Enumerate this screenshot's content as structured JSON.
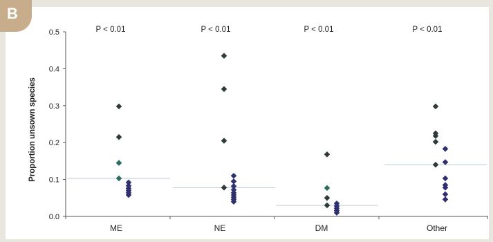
{
  "panel_label": "B",
  "chart_data": {
    "type": "scatter",
    "ylabel": "Proportion unsown species",
    "ylim": [
      0,
      0.5
    ],
    "yticks": [
      "0.0",
      "0.1",
      "0.2",
      "0.3",
      "0.4",
      "0.5"
    ],
    "categories": [
      "ME",
      "NE",
      "DM",
      "Other"
    ],
    "pvalues": [
      "P < 0.01",
      "P < 0.01",
      "P < 0.01",
      "P < 0.01"
    ],
    "colors": {
      "dark": "#2f3b3b",
      "green": "#2e6b5e",
      "navy": "#30306e",
      "mean_line": "#c9d4dc",
      "badge": "#c7ad8b"
    },
    "groups": [
      {
        "category": "ME",
        "mean": 0.103,
        "points": [
          {
            "y": 0.298,
            "c": "dark",
            "o": 0
          },
          {
            "y": 0.215,
            "c": "dark",
            "o": 0
          },
          {
            "y": 0.145,
            "c": "green",
            "o": 0
          },
          {
            "y": 0.103,
            "c": "green",
            "o": 0
          },
          {
            "y": 0.092,
            "c": "navy",
            "o": 1
          },
          {
            "y": 0.083,
            "c": "navy",
            "o": 1
          },
          {
            "y": 0.076,
            "c": "navy",
            "o": 1
          },
          {
            "y": 0.07,
            "c": "navy",
            "o": 1
          },
          {
            "y": 0.064,
            "c": "navy",
            "o": 1
          },
          {
            "y": 0.058,
            "c": "navy",
            "o": 1
          }
        ]
      },
      {
        "category": "NE",
        "mean": 0.078,
        "points": [
          {
            "y": 0.435,
            "c": "dark",
            "o": 0
          },
          {
            "y": 0.345,
            "c": "dark",
            "o": 0
          },
          {
            "y": 0.205,
            "c": "dark",
            "o": 0
          },
          {
            "y": 0.078,
            "c": "dark",
            "o": 0
          },
          {
            "y": 0.11,
            "c": "navy",
            "o": 1
          },
          {
            "y": 0.095,
            "c": "navy",
            "o": 1
          },
          {
            "y": 0.082,
            "c": "navy",
            "o": 1
          },
          {
            "y": 0.072,
            "c": "navy",
            "o": 1
          },
          {
            "y": 0.064,
            "c": "navy",
            "o": 1
          },
          {
            "y": 0.058,
            "c": "navy",
            "o": 1
          },
          {
            "y": 0.052,
            "c": "navy",
            "o": 1
          },
          {
            "y": 0.046,
            "c": "navy",
            "o": 1
          },
          {
            "y": 0.04,
            "c": "navy",
            "o": 1
          }
        ]
      },
      {
        "category": "DM",
        "mean": 0.03,
        "points": [
          {
            "y": 0.168,
            "c": "dark",
            "o": 0
          },
          {
            "y": 0.077,
            "c": "green",
            "o": 0
          },
          {
            "y": 0.05,
            "c": "dark",
            "o": 0
          },
          {
            "y": 0.03,
            "c": "dark",
            "o": 0
          },
          {
            "y": 0.035,
            "c": "navy",
            "o": 1
          },
          {
            "y": 0.028,
            "c": "navy",
            "o": 1
          },
          {
            "y": 0.022,
            "c": "navy",
            "o": 1
          },
          {
            "y": 0.016,
            "c": "navy",
            "o": 1
          },
          {
            "y": 0.01,
            "c": "navy",
            "o": 1
          }
        ]
      },
      {
        "category": "Other",
        "mean": 0.14,
        "points": [
          {
            "y": 0.298,
            "c": "dark",
            "o": 0
          },
          {
            "y": 0.225,
            "c": "dark",
            "o": 0
          },
          {
            "y": 0.218,
            "c": "dark",
            "o": 0
          },
          {
            "y": 0.202,
            "c": "dark",
            "o": 0
          },
          {
            "y": 0.14,
            "c": "dark",
            "o": 0
          },
          {
            "y": 0.183,
            "c": "navy",
            "o": 1
          },
          {
            "y": 0.147,
            "c": "navy",
            "o": 1
          },
          {
            "y": 0.103,
            "c": "navy",
            "o": 1
          },
          {
            "y": 0.085,
            "c": "navy",
            "o": 1
          },
          {
            "y": 0.078,
            "c": "navy",
            "o": 1
          },
          {
            "y": 0.06,
            "c": "navy",
            "o": 1
          },
          {
            "y": 0.046,
            "c": "navy",
            "o": 1
          }
        ]
      }
    ],
    "grid": false,
    "legend": "none"
  }
}
